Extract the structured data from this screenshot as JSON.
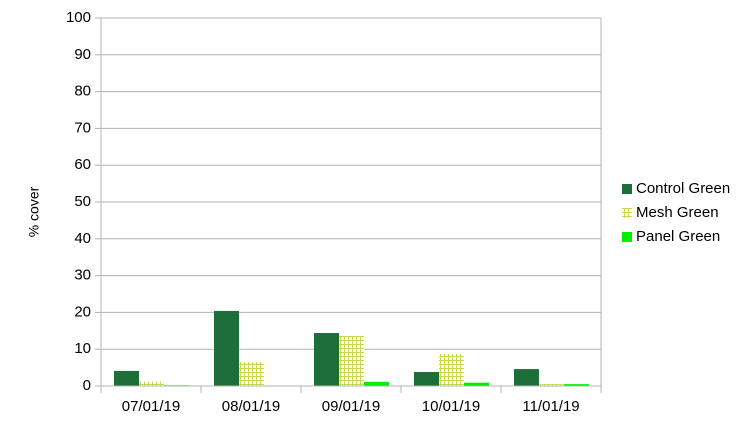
{
  "chart_data": {
    "type": "bar",
    "y_label": "% cover",
    "categories": [
      "07/01/19",
      "08/01/19",
      "09/01/19",
      "10/01/19",
      "11/01/19"
    ],
    "series": [
      {
        "name": "Control Green",
        "color": "#1e6e3a",
        "values": [
          4.1,
          20.4,
          14.4,
          3.8,
          4.6
        ]
      },
      {
        "name": "Mesh Green",
        "color": "#c8d84c",
        "pattern": "grid",
        "values": [
          1.2,
          6.5,
          13.6,
          8.7,
          0.5
        ]
      },
      {
        "name": "Panel Green",
        "color": "#00ee00",
        "values": [
          0.2,
          0,
          1.1,
          0.9,
          0.5
        ]
      }
    ],
    "ylim": [
      0,
      100
    ],
    "yticks": [
      0,
      10,
      20,
      30,
      40,
      50,
      60,
      70,
      80,
      90,
      100
    ],
    "grid": true,
    "legend": "right"
  }
}
